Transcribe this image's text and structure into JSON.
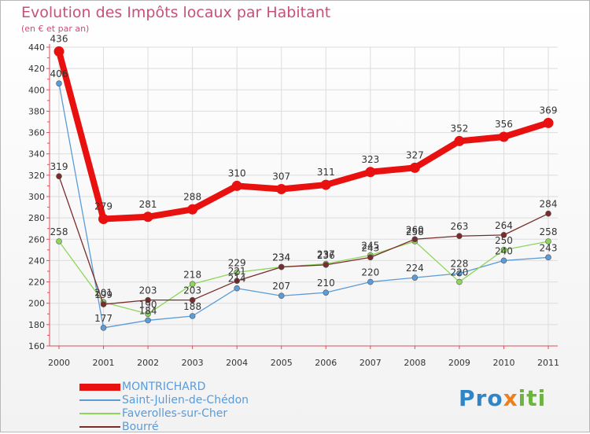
{
  "page": {
    "title": "Evolution des Impôts locaux par Habitant",
    "subtitle": "(en € et par an)"
  },
  "chart_data": {
    "type": "line",
    "title": "Evolution des Impôts locaux par Habitant",
    "subtitle": "(en € et par an)",
    "xlabel": "",
    "ylabel": "",
    "x": [
      "2000",
      "2001",
      "2002",
      "2003",
      "2004",
      "2005",
      "2006",
      "2007",
      "2008",
      "2009",
      "2010",
      "2011"
    ],
    "ylim": [
      160,
      440
    ],
    "yticks": [
      "160",
      "180",
      "200",
      "220",
      "240",
      "260",
      "280",
      "300",
      "320",
      "340",
      "360",
      "380",
      "400",
      "420",
      "440"
    ],
    "grid": true,
    "legend_position": "bottom-left",
    "series": [
      {
        "name": "Saint-Julien-de-Chédon",
        "color": "#5a9bd8",
        "values": [
          406,
          177,
          184,
          188,
          214,
          207,
          210,
          220,
          224,
          228,
          240,
          243
        ],
        "labels": [
          "406",
          "177",
          "184",
          "188",
          "214",
          "207",
          "210",
          "220",
          "224",
          "228",
          "240",
          "243"
        ]
      },
      {
        "name": "Faverolles-sur-Cher",
        "color": "#8ed65a",
        "values": [
          258,
          201,
          190,
          218,
          229,
          234,
          237,
          245,
          258,
          220,
          250,
          258
        ],
        "labels": [
          "258",
          "201",
          "190",
          "218",
          "229",
          "234",
          "237",
          "245",
          "258",
          "220",
          "250",
          "258"
        ]
      },
      {
        "name": "Bourré",
        "color": "#7a2c2c",
        "values": [
          319,
          199,
          203,
          203,
          221,
          234,
          236,
          243,
          260,
          263,
          264,
          284
        ],
        "labels": [
          "319",
          "199",
          "203",
          "203",
          "221",
          "234",
          "236",
          "243",
          "260",
          "263",
          "264",
          "284"
        ]
      },
      {
        "name": "MONTRICHARD",
        "color": "#e8110f",
        "values": [
          436,
          279,
          281,
          288,
          310,
          307,
          311,
          323,
          327,
          352,
          356,
          369
        ],
        "labels": [
          "436",
          "279",
          "281",
          "288",
          "310",
          "307",
          "311",
          "323",
          "327",
          "352",
          "356",
          "369"
        ]
      }
    ]
  },
  "legend": {
    "items": [
      {
        "label": "MONTRICHARD",
        "color": "#e8110f"
      },
      {
        "label": "Saint-Julien-de-Chédon",
        "color": "#5a9bd8"
      },
      {
        "label": "Faverolles-sur-Cher",
        "color": "#8ed65a"
      },
      {
        "label": "Bourré",
        "color": "#7a2c2c"
      }
    ]
  },
  "logo": {
    "part1": "Pro",
    "part2": "x",
    "part3": "iti"
  }
}
